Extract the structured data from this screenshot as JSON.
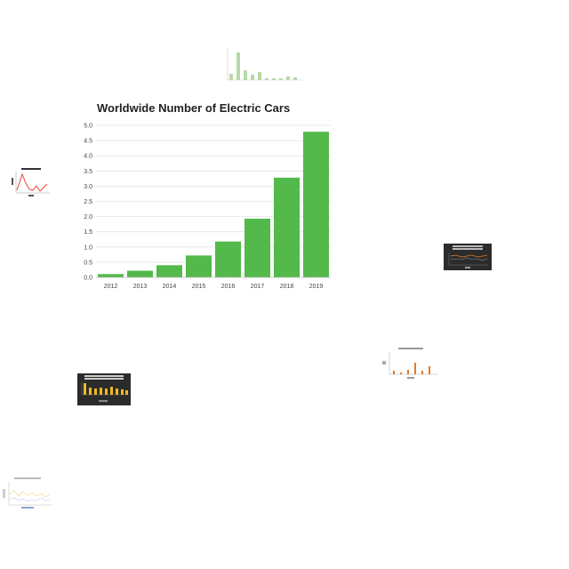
{
  "chart_data": {
    "type": "bar",
    "title": "Worldwide Number of Electric Cars",
    "xlabel": "",
    "ylabel": "",
    "categories": [
      "2012",
      "2013",
      "2014",
      "2015",
      "2016",
      "2017",
      "2018",
      "2019"
    ],
    "values": [
      0.11,
      0.22,
      0.4,
      0.72,
      1.18,
      1.93,
      3.28,
      4.79
    ],
    "ylim": [
      0,
      5
    ],
    "y_ticks": [
      "0.0",
      "0.5",
      "1.0",
      "1.5",
      "2.0",
      "2.5",
      "3.0",
      "3.5",
      "4.0",
      "4.5",
      "5.0"
    ],
    "bar_color": "#52b94a",
    "grid": true
  },
  "colors": {
    "background": "#ffffff",
    "grid": "#e3e3e3",
    "thumb_green": "#b7d9a8",
    "thumb_red": "#e8413b",
    "thumb_dark": "#2b2b2b",
    "thumb_orange": "#e07b2a",
    "thumb_yellow": "#f2b824"
  }
}
